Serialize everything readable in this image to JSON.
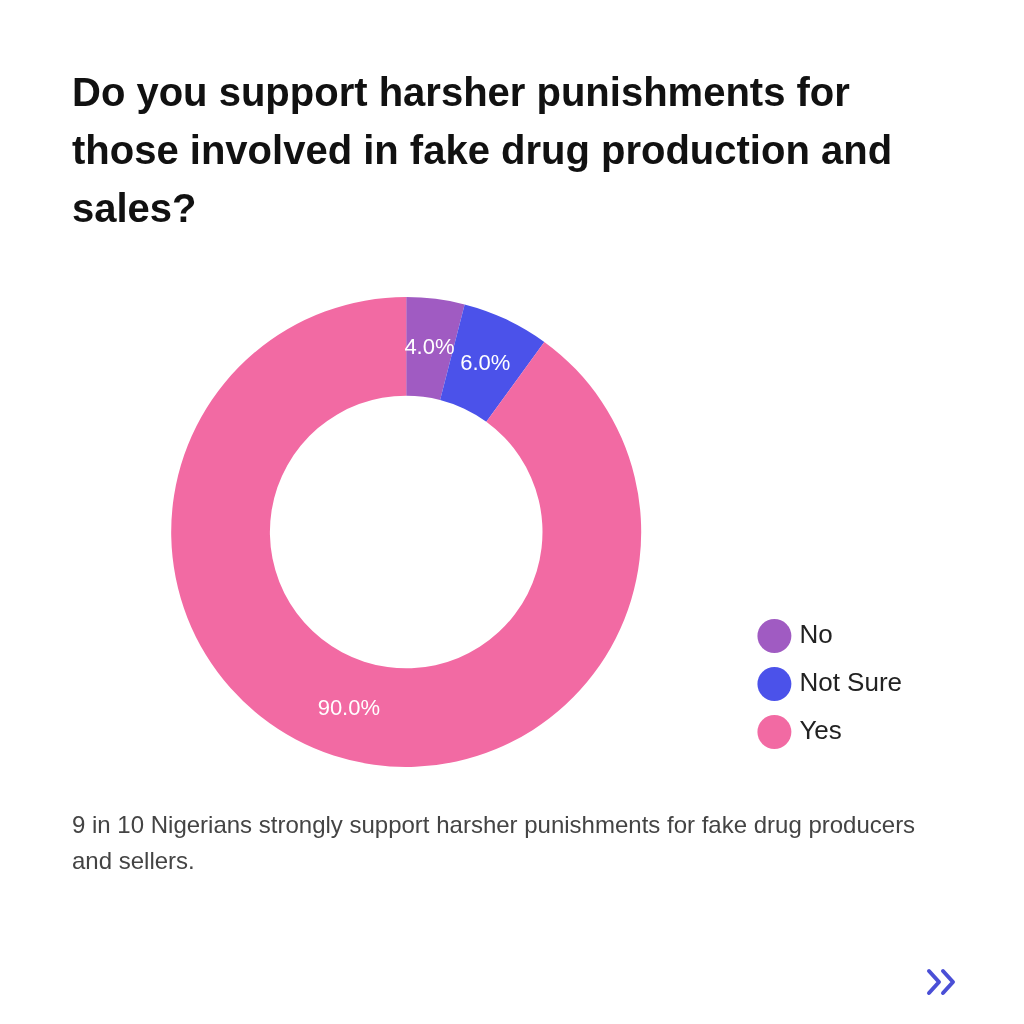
{
  "chart_data": {
    "type": "donut",
    "title": "Do you support harsher punishments for those involved in fake drug production and sales?",
    "categories": [
      "No",
      "Not Sure",
      "Yes"
    ],
    "values": [
      4,
      6,
      90
    ],
    "colors": [
      "#a05bc2",
      "#4b52ea",
      "#f26aa3"
    ],
    "value_labels": [
      "4.0%",
      "6.0%",
      "90.0%"
    ],
    "legend": "bottom right",
    "annotations": [
      "9 in 10 Nigerians strongly support harsher punishments for fake drug producers and sellers."
    ]
  }
}
